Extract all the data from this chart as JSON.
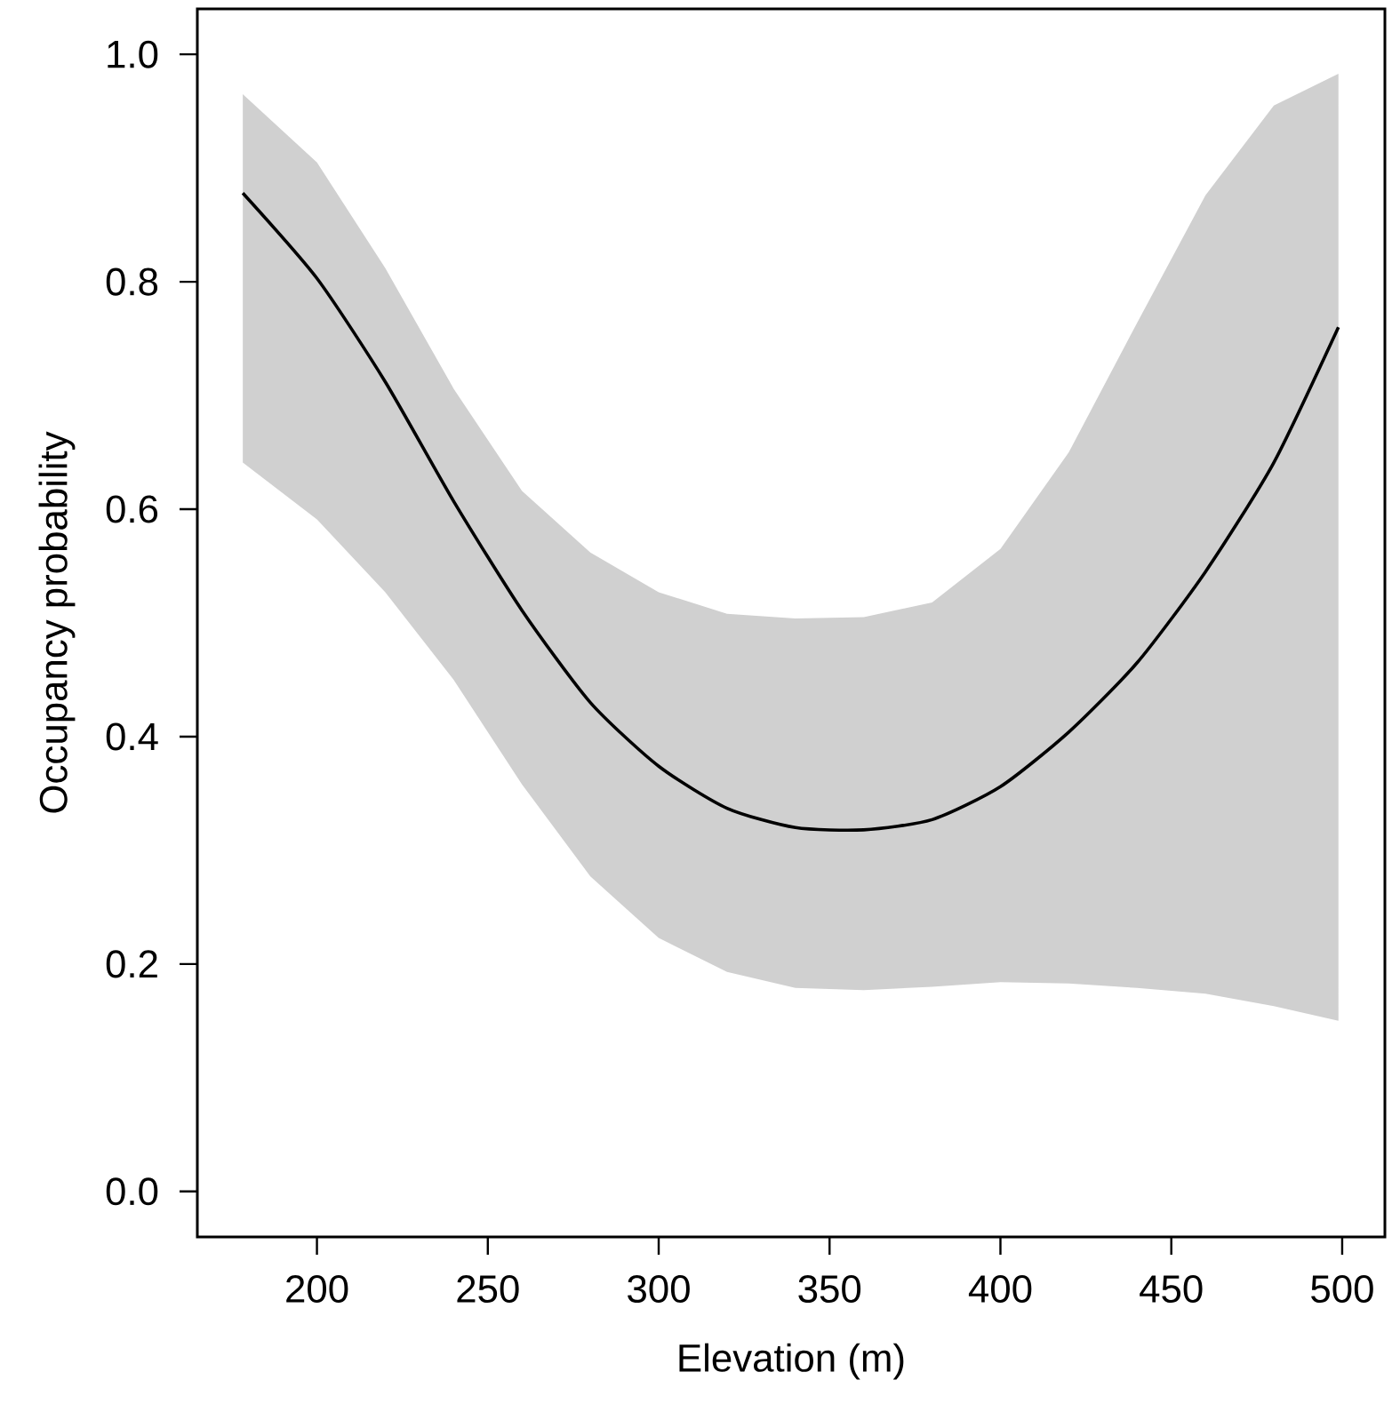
{
  "chart_data": {
    "type": "line",
    "xlabel": "Elevation (m)",
    "ylabel": "Occupancy probability",
    "xlim": [
      165,
      512.5
    ],
    "ylim": [
      -0.04,
      1.04
    ],
    "xticks": [
      200,
      250,
      300,
      350,
      400,
      450,
      500
    ],
    "yticks": [
      {
        "value": 0,
        "label": "0.0"
      },
      {
        "value": 0.2,
        "label": "0.2"
      },
      {
        "value": 0.4,
        "label": "0.4"
      },
      {
        "value": 0.6,
        "label": "0.6"
      },
      {
        "value": 0.8,
        "label": "0.8"
      },
      {
        "value": 1.0,
        "label": "1.0"
      }
    ],
    "series": [
      {
        "color": "#000000",
        "x": [
          178.3,
          200,
          220,
          240,
          260,
          280,
          300,
          320,
          340,
          360,
          380,
          400,
          420,
          440,
          460,
          480,
          498.9
        ],
        "values": [
          0.878,
          0.803,
          0.712,
          0.607,
          0.511,
          0.43,
          0.374,
          0.337,
          0.32,
          0.318,
          0.327,
          0.356,
          0.404,
          0.465,
          0.545,
          0.641,
          0.76
        ],
        "upper": [
          0.965,
          0.905,
          0.812,
          0.706,
          0.616,
          0.562,
          0.527,
          0.508,
          0.504,
          0.505,
          0.518,
          0.565,
          0.65,
          0.764,
          0.876,
          0.955,
          0.983
        ],
        "lower": [
          0.641,
          0.591,
          0.527,
          0.45,
          0.358,
          0.277,
          0.223,
          0.193,
          0.179,
          0.177,
          0.18,
          0.184,
          0.183,
          0.179,
          0.174,
          0.163,
          0.15
        ]
      }
    ]
  }
}
